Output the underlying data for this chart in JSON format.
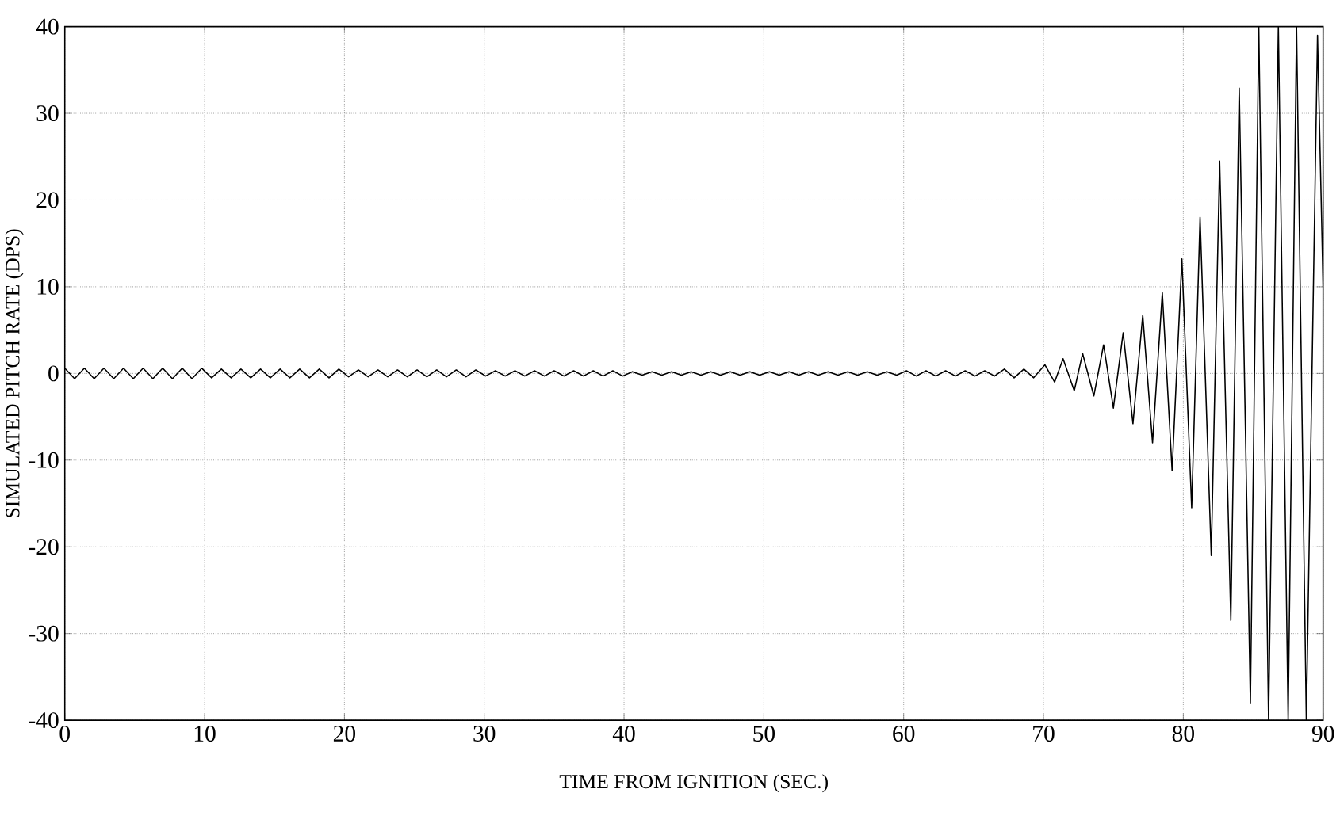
{
  "chart_data": {
    "type": "line",
    "xlabel": "TIME FROM IGNITION (SEC.)",
    "ylabel": "SIMULATED PITCH RATE (DPS)",
    "xlim": [
      0,
      90
    ],
    "ylim": [
      -40,
      40
    ],
    "xticks": [
      0,
      10,
      20,
      30,
      40,
      50,
      60,
      70,
      80,
      90
    ],
    "yticks": [
      -40,
      -30,
      -20,
      -10,
      0,
      10,
      20,
      30,
      40
    ],
    "grid": true,
    "marker": "none",
    "line_style": "solid",
    "series": [
      {
        "color": "#000000",
        "x": [
          0,
          0.7,
          1.4,
          2.1,
          2.8,
          3.5,
          4.2,
          4.9,
          5.6,
          6.3,
          7,
          7.7,
          8.4,
          9.1,
          9.8,
          10.5,
          11.2,
          11.9,
          12.6,
          13.3,
          14,
          14.7,
          15.4,
          16.1,
          16.8,
          17.5,
          18.2,
          18.9,
          19.6,
          20.3,
          21,
          21.7,
          22.4,
          23.1,
          23.8,
          24.5,
          25.2,
          25.9,
          26.6,
          27.3,
          28,
          28.7,
          29.4,
          30.1,
          30.8,
          31.5,
          32.2,
          32.9,
          33.6,
          34.3,
          35,
          35.7,
          36.4,
          37.1,
          37.8,
          38.5,
          39.2,
          39.9,
          40.6,
          41.3,
          42,
          42.7,
          43.4,
          44.1,
          44.8,
          45.5,
          46.2,
          46.9,
          47.6,
          48.3,
          49,
          49.7,
          50.4,
          51.1,
          51.8,
          52.5,
          53.2,
          53.9,
          54.6,
          55.3,
          56,
          56.7,
          57.4,
          58.1,
          58.8,
          59.5,
          60.2,
          60.9,
          61.6,
          62.3,
          63,
          63.7,
          64.4,
          65.1,
          65.8,
          66.5,
          67.2,
          67.9,
          68.6,
          69.3,
          70.1,
          70.8,
          71.4,
          72.2,
          72.8,
          73.6,
          74.3,
          75.0,
          75.7,
          76.4,
          77.1,
          77.8,
          78.5,
          79.2,
          79.9,
          80.6,
          81.2,
          82.0,
          82.6,
          83.4,
          84.0,
          84.8,
          85.4,
          86.1,
          86.8,
          87.5,
          88.1,
          88.8,
          89.6,
          90
        ],
        "values": [
          0.6,
          -0.6,
          0.6,
          -0.6,
          0.6,
          -0.6,
          0.6,
          -0.6,
          0.6,
          -0.6,
          0.6,
          -0.6,
          0.6,
          -0.6,
          0.6,
          -0.5,
          0.5,
          -0.5,
          0.5,
          -0.5,
          0.5,
          -0.5,
          0.5,
          -0.5,
          0.5,
          -0.5,
          0.5,
          -0.5,
          0.5,
          -0.4,
          0.4,
          -0.4,
          0.4,
          -0.4,
          0.4,
          -0.4,
          0.4,
          -0.4,
          0.4,
          -0.4,
          0.4,
          -0.4,
          0.4,
          -0.3,
          0.3,
          -0.3,
          0.3,
          -0.3,
          0.3,
          -0.3,
          0.3,
          -0.3,
          0.3,
          -0.3,
          0.3,
          -0.3,
          0.3,
          -0.3,
          0.2,
          -0.2,
          0.2,
          -0.2,
          0.2,
          -0.2,
          0.2,
          -0.2,
          0.2,
          -0.2,
          0.2,
          -0.2,
          0.2,
          -0.2,
          0.2,
          -0.2,
          0.2,
          -0.2,
          0.2,
          -0.2,
          0.2,
          -0.2,
          0.2,
          -0.2,
          0.2,
          -0.2,
          0.2,
          -0.2,
          0.3,
          -0.3,
          0.3,
          -0.3,
          0.3,
          -0.3,
          0.3,
          -0.3,
          0.3,
          -0.3,
          0.5,
          -0.5,
          0.5,
          -0.5,
          1.0,
          -1.0,
          1.7,
          -2.0,
          2.3,
          -2.6,
          3.3,
          -4.0,
          4.7,
          -5.8,
          6.7,
          -8.0,
          9.3,
          -11.2,
          13.2,
          -15.5,
          18.0,
          -21.0,
          24.5,
          -28.5,
          32.9,
          -38.0,
          40,
          -40,
          40,
          -40,
          40,
          -40,
          39,
          10
        ]
      }
    ]
  }
}
